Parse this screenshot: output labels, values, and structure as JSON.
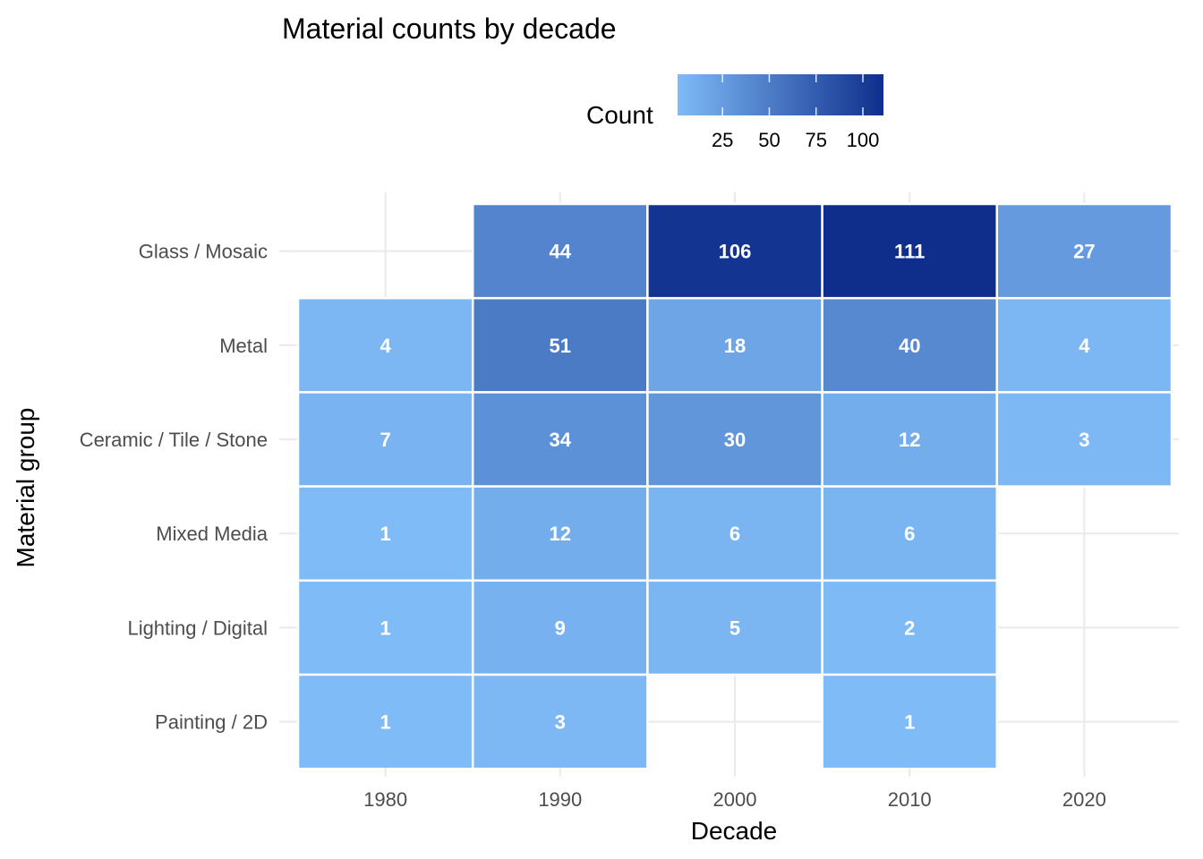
{
  "chart_data": {
    "type": "heatmap",
    "title": "Material counts by decade",
    "xlabel": "Decade",
    "ylabel": "Material group",
    "x_categories": [
      "1980",
      "1990",
      "2000",
      "2010",
      "2020"
    ],
    "y_categories": [
      "Glass / Mosaic",
      "Metal",
      "Ceramic / Tile / Stone",
      "Mixed Media",
      "Lighting / Digital",
      "Painting / 2D"
    ],
    "cells": [
      {
        "x": "1990",
        "y": "Glass / Mosaic",
        "value": 44
      },
      {
        "x": "2000",
        "y": "Glass / Mosaic",
        "value": 106
      },
      {
        "x": "2010",
        "y": "Glass / Mosaic",
        "value": 111
      },
      {
        "x": "2020",
        "y": "Glass / Mosaic",
        "value": 27
      },
      {
        "x": "1980",
        "y": "Metal",
        "value": 4
      },
      {
        "x": "1990",
        "y": "Metal",
        "value": 51
      },
      {
        "x": "2000",
        "y": "Metal",
        "value": 18
      },
      {
        "x": "2010",
        "y": "Metal",
        "value": 40
      },
      {
        "x": "2020",
        "y": "Metal",
        "value": 4
      },
      {
        "x": "1980",
        "y": "Ceramic / Tile / Stone",
        "value": 7
      },
      {
        "x": "1990",
        "y": "Ceramic / Tile / Stone",
        "value": 34
      },
      {
        "x": "2000",
        "y": "Ceramic / Tile / Stone",
        "value": 30
      },
      {
        "x": "2010",
        "y": "Ceramic / Tile / Stone",
        "value": 12
      },
      {
        "x": "2020",
        "y": "Ceramic / Tile / Stone",
        "value": 3
      },
      {
        "x": "1980",
        "y": "Mixed Media",
        "value": 1
      },
      {
        "x": "1990",
        "y": "Mixed Media",
        "value": 12
      },
      {
        "x": "2000",
        "y": "Mixed Media",
        "value": 6
      },
      {
        "x": "2010",
        "y": "Mixed Media",
        "value": 6
      },
      {
        "x": "1980",
        "y": "Lighting / Digital",
        "value": 1
      },
      {
        "x": "1990",
        "y": "Lighting / Digital",
        "value": 9
      },
      {
        "x": "2000",
        "y": "Lighting / Digital",
        "value": 5
      },
      {
        "x": "2010",
        "y": "Lighting / Digital",
        "value": 2
      },
      {
        "x": "1980",
        "y": "Painting / 2D",
        "value": 1
      },
      {
        "x": "1990",
        "y": "Painting / 2D",
        "value": 3
      },
      {
        "x": "2010",
        "y": "Painting / 2D",
        "value": 1
      }
    ],
    "color_scale": {
      "low_color": "#7fbbf7",
      "high_color": "#0f2e8c",
      "range": [
        1,
        111
      ]
    },
    "legend": {
      "title": "Count",
      "ticks": [
        25,
        50,
        75,
        100
      ],
      "placement": "top"
    },
    "grid": true
  }
}
